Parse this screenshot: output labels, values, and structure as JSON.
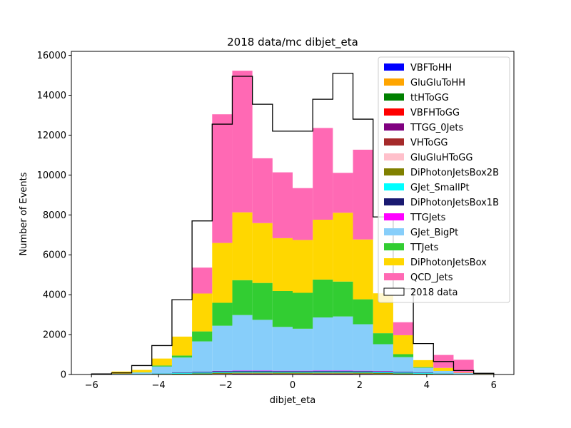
{
  "chart_data": {
    "type": "bar",
    "title": "2018 data/mc dibjet_eta",
    "xlabel": "dibjet_eta",
    "ylabel": "Number of Events",
    "xlim": [
      -6.6,
      6.6
    ],
    "ylim": [
      0,
      16200
    ],
    "xticks": [
      -6,
      -4,
      -2,
      0,
      2,
      4,
      6
    ],
    "yticks": [
      0,
      2000,
      4000,
      6000,
      8000,
      10000,
      12000,
      14000,
      16000
    ],
    "bin_edges": [
      -6.0,
      -5.4,
      -4.8,
      -4.2,
      -3.6,
      -3.0,
      -2.4,
      -1.8,
      -1.2,
      -0.6,
      0.0,
      0.6,
      1.2,
      1.8,
      2.4,
      3.0,
      3.6,
      4.2,
      4.8,
      5.4,
      6.0
    ],
    "legend_position": "upper-right",
    "series": [
      {
        "name": "VBFToHH",
        "color": "#0000ff",
        "values": [
          0,
          0,
          0,
          0,
          0,
          0,
          0,
          0,
          0,
          0,
          0,
          0,
          0,
          0,
          0,
          0,
          0,
          0,
          0,
          0
        ]
      },
      {
        "name": "GluGluToHH",
        "color": "#ffa500",
        "values": [
          0,
          0,
          0,
          0,
          0,
          0,
          0,
          0,
          0,
          0,
          0,
          0,
          0,
          0,
          0,
          0,
          0,
          0,
          0,
          0
        ]
      },
      {
        "name": "ttHToGG",
        "color": "#008000",
        "values": [
          0,
          0,
          0,
          0,
          0,
          0,
          5,
          10,
          10,
          10,
          10,
          10,
          10,
          10,
          5,
          0,
          0,
          0,
          0,
          0
        ]
      },
      {
        "name": "VBFHToGG",
        "color": "#ff0000",
        "values": [
          0,
          0,
          0,
          0,
          0,
          0,
          0,
          0,
          0,
          0,
          0,
          0,
          0,
          0,
          0,
          0,
          0,
          0,
          0,
          0
        ]
      },
      {
        "name": "TTGG_0Jets",
        "color": "#800080",
        "values": [
          0,
          0,
          0,
          0,
          0,
          5,
          20,
          25,
          25,
          20,
          20,
          25,
          25,
          20,
          10,
          5,
          0,
          0,
          0,
          0
        ]
      },
      {
        "name": "VHToGG",
        "color": "#a52a2a",
        "values": [
          0,
          0,
          0,
          0,
          0,
          0,
          5,
          5,
          5,
          5,
          5,
          5,
          5,
          5,
          5,
          0,
          0,
          0,
          0,
          0
        ]
      },
      {
        "name": "GluGluHToGG",
        "color": "#ffc0cb",
        "values": [
          0,
          0,
          0,
          0,
          0,
          0,
          5,
          5,
          5,
          5,
          5,
          5,
          5,
          5,
          5,
          0,
          0,
          0,
          0,
          0
        ]
      },
      {
        "name": "DiPhotonJetsBox2B",
        "color": "#808000",
        "values": [
          0,
          10,
          20,
          30,
          40,
          50,
          50,
          50,
          50,
          50,
          50,
          50,
          50,
          50,
          50,
          50,
          40,
          30,
          20,
          10
        ]
      },
      {
        "name": "GJet_SmallPt",
        "color": "#00ffff",
        "values": [
          0,
          0,
          10,
          20,
          30,
          40,
          40,
          40,
          40,
          40,
          40,
          40,
          40,
          40,
          40,
          40,
          30,
          20,
          10,
          0
        ]
      },
      {
        "name": "DiPhotonJetsBox1B",
        "color": "#191970",
        "values": [
          0,
          0,
          0,
          10,
          20,
          30,
          40,
          40,
          40,
          40,
          40,
          40,
          40,
          40,
          40,
          30,
          20,
          10,
          0,
          0
        ]
      },
      {
        "name": "TTGJets",
        "color": "#ff00ff",
        "values": [
          0,
          0,
          0,
          0,
          0,
          10,
          20,
          20,
          20,
          20,
          20,
          20,
          20,
          20,
          20,
          10,
          0,
          0,
          0,
          0
        ]
      },
      {
        "name": "GJet_BigPt",
        "color": "#87cefa",
        "values": [
          0,
          30,
          70,
          340,
          760,
          1525,
          2260,
          2785,
          2545,
          2195,
          2105,
          2665,
          2715,
          2330,
          1345,
          735,
          250,
          120,
          40,
          10
        ]
      },
      {
        "name": "TTJets",
        "color": "#32cd32",
        "values": [
          0,
          0,
          10,
          50,
          100,
          500,
          1150,
          1750,
          1850,
          1800,
          1800,
          1900,
          1750,
          1250,
          550,
          150,
          30,
          0,
          0,
          0
        ]
      },
      {
        "name": "DiPhotonJetsBox",
        "color": "#ffd700",
        "values": [
          20,
          110,
          120,
          350,
          950,
          1900,
          3000,
          3400,
          3000,
          2650,
          2650,
          3000,
          3450,
          3000,
          2000,
          950,
          350,
          150,
          20,
          5
        ]
      },
      {
        "name": "QCD_Jets",
        "color": "#ff69b4",
        "values": [
          0,
          0,
          0,
          0,
          0,
          1300,
          6450,
          7100,
          3250,
          3300,
          2600,
          4600,
          2000,
          4500,
          0,
          650,
          0,
          650,
          650,
          0
        ]
      }
    ],
    "data": {
      "name": "2018 data",
      "values": [
        30,
        80,
        450,
        1450,
        3750,
        7700,
        12550,
        14950,
        13550,
        12200,
        12200,
        13800,
        15100,
        12800,
        7900,
        4300,
        1550,
        650,
        200,
        60
      ]
    }
  }
}
